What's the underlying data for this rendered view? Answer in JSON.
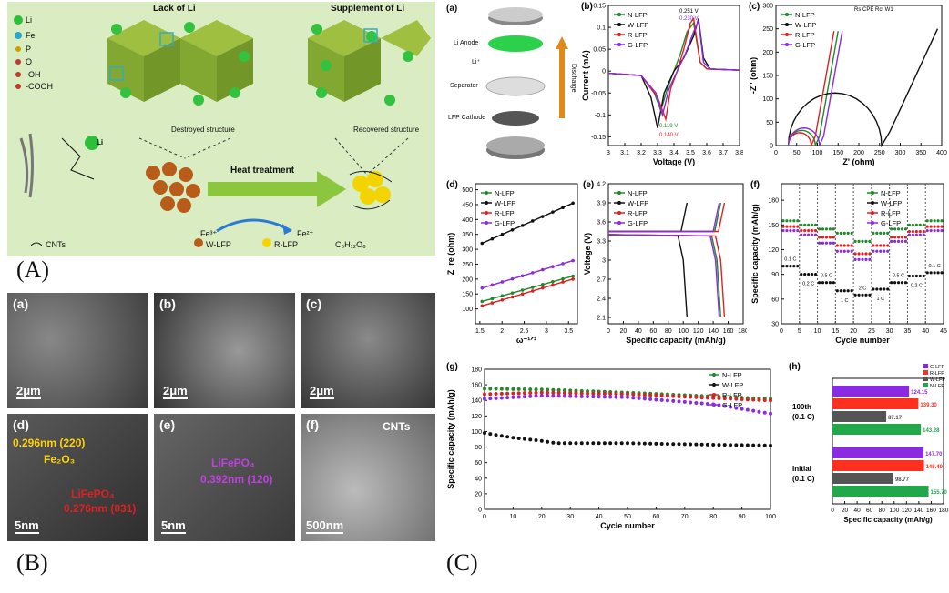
{
  "panelA": {
    "letter": "(A)",
    "legend": {
      "li": "Li",
      "fe": "Fe",
      "p": "P",
      "o": "O",
      "oh": "-OH",
      "cooh": "-COOH"
    },
    "lack_label": "Lack of Li",
    "supplement_label": "Supplement of Li",
    "destroyed_label": "Destroyed structure",
    "recovered_label": "Recovered structure",
    "li_bubble": "Li",
    "heat_label": "Heat treatment",
    "fe3": "Fe³⁺",
    "fe2": "Fe²⁺",
    "bottom_legend": {
      "cnts": "CNTs",
      "wlfp": "W-LFP",
      "rlfp": "R-LFP",
      "glucose": "C₆H₁₂O₆"
    },
    "colors": {
      "bg": "#d9ecc2",
      "li": "#2bbf3a",
      "fe": "#2aa7c8",
      "p": "#c9a100",
      "o": "#c0392b",
      "arrow": "#8cc63f",
      "wlfp": "#b85c1a",
      "rlfp": "#f4d400"
    }
  },
  "panelB": {
    "letter": "(B)",
    "images": [
      {
        "tag": "(a)",
        "scale": "2μm"
      },
      {
        "tag": "(b)",
        "scale": "2μm"
      },
      {
        "tag": "(c)",
        "scale": "2μm"
      },
      {
        "tag": "(d)",
        "scale": "5nm",
        "ann1": "0.296nm (220)",
        "ann2": "Fe₂O₃",
        "ann3": "LiFePO₄",
        "ann4": "0.276nm (031)"
      },
      {
        "tag": "(e)",
        "scale": "5nm",
        "ann1": "LiFePO₄",
        "ann2": "0.392nm (120)"
      },
      {
        "tag": "(f)",
        "scale": "500nm",
        "ann1": "CNTs"
      }
    ]
  },
  "panelC": {
    "letter": "(C)",
    "a": {
      "tag": "(a)",
      "labels": [
        "Li Anode",
        "Li⁺",
        "Separator",
        "LFP Cathode",
        "Discharge"
      ]
    },
    "series_names": [
      "N-LFP",
      "W-LFP",
      "R-LFP",
      "G-LFP"
    ],
    "series_colors": [
      "#1f8a2a",
      "#111111",
      "#e02020",
      "#8a2be2"
    ]
  },
  "chart_data": [
    {
      "id": "b",
      "type": "line",
      "tag": "(b)",
      "xlabel": "Voltage (V)",
      "ylabel": "Current (mA)",
      "xlim": [
        3.0,
        3.8
      ],
      "ylim": [
        -0.17,
        0.15
      ],
      "xticks": [
        3.0,
        3.1,
        3.2,
        3.3,
        3.4,
        3.5,
        3.6,
        3.7,
        3.8
      ],
      "yticks": [
        -0.15,
        -0.1,
        -0.05,
        0.0,
        0.05,
        0.1,
        0.15
      ],
      "annotations": [
        "0.251 V",
        "0.230 V",
        "0.119 V",
        "0.140 V"
      ],
      "series": [
        {
          "name": "N-LFP",
          "x": [
            3.0,
            3.2,
            3.28,
            3.32,
            3.36,
            3.4,
            3.44,
            3.48,
            3.52,
            3.56,
            3.6,
            3.8
          ],
          "y": [
            -0.005,
            -0.01,
            -0.05,
            -0.09,
            -0.04,
            0.0,
            0.04,
            0.09,
            0.11,
            0.02,
            0.005,
            0.002
          ]
        },
        {
          "name": "W-LFP",
          "x": [
            3.0,
            3.2,
            3.26,
            3.3,
            3.34,
            3.4,
            3.46,
            3.52,
            3.55,
            3.58,
            3.62,
            3.8
          ],
          "y": [
            -0.005,
            -0.01,
            -0.06,
            -0.13,
            -0.05,
            0.0,
            0.03,
            0.08,
            0.12,
            0.03,
            0.005,
            0.002
          ]
        },
        {
          "name": "R-LFP",
          "x": [
            3.0,
            3.2,
            3.3,
            3.35,
            3.38,
            3.42,
            3.46,
            3.5,
            3.52,
            3.56,
            3.6,
            3.8
          ],
          "y": [
            -0.005,
            -0.01,
            -0.06,
            -0.11,
            -0.04,
            0.0,
            0.05,
            0.11,
            0.12,
            0.02,
            0.005,
            0.002
          ]
        },
        {
          "name": "G-LFP",
          "x": [
            3.0,
            3.2,
            3.29,
            3.33,
            3.37,
            3.42,
            3.47,
            3.52,
            3.55,
            3.58,
            3.62,
            3.8
          ],
          "y": [
            -0.005,
            -0.01,
            -0.05,
            -0.1,
            -0.04,
            0.0,
            0.04,
            0.09,
            0.115,
            0.02,
            0.005,
            0.002
          ]
        }
      ]
    },
    {
      "id": "c",
      "type": "scatter",
      "tag": "(c)",
      "xlabel": "Z' (ohm)",
      "ylabel": "-Z'' (ohm)",
      "xlim": [
        0,
        400
      ],
      "ylim": [
        0,
        300
      ],
      "xticks": [
        0,
        50,
        100,
        150,
        200,
        250,
        300,
        350,
        400
      ],
      "yticks": [
        0,
        50,
        100,
        150,
        200,
        250,
        300
      ],
      "circuit": [
        "Rs",
        "CPE",
        "Rct",
        "W1"
      ]
    },
    {
      "id": "d",
      "type": "line",
      "tag": "(d)",
      "xlabel": "ω⁻¹ᐟ²",
      "ylabel": "Z_re (ohm)",
      "xlim": [
        1.4,
        3.7
      ],
      "ylim": [
        50,
        520
      ],
      "xticks": [
        1.5,
        2.0,
        2.5,
        3.0,
        3.5
      ],
      "yticks": [
        100,
        150,
        200,
        250,
        300,
        350,
        400,
        450,
        500
      ],
      "series": [
        {
          "name": "N-LFP",
          "x": [
            1.55,
            3.6
          ],
          "y": [
            125,
            210
          ]
        },
        {
          "name": "W-LFP",
          "x": [
            1.55,
            3.6
          ],
          "y": [
            320,
            455
          ]
        },
        {
          "name": "R-LFP",
          "x": [
            1.55,
            3.6
          ],
          "y": [
            110,
            200
          ]
        },
        {
          "name": "G-LFP",
          "x": [
            1.55,
            3.6
          ],
          "y": [
            170,
            262
          ]
        }
      ]
    },
    {
      "id": "e",
      "type": "line",
      "tag": "(e)",
      "xlabel": "Specific capacity (mAh/g)",
      "ylabel": "Voltage (V)",
      "xlim": [
        0,
        180
      ],
      "ylim": [
        2.0,
        4.2
      ],
      "xticks": [
        0,
        20,
        40,
        60,
        80,
        100,
        120,
        140,
        160,
        180
      ],
      "yticks": [
        2.1,
        2.4,
        2.7,
        3.0,
        3.3,
        3.6,
        3.9,
        4.2
      ]
    },
    {
      "id": "f",
      "type": "scatter",
      "tag": "(f)",
      "xlabel": "Cycle number",
      "ylabel": "Specific capacity (mAh/g)",
      "xlim": [
        0,
        45
      ],
      "ylim": [
        30,
        200
      ],
      "xticks": [
        0,
        5,
        10,
        15,
        20,
        25,
        30,
        35,
        40,
        45
      ],
      "yticks": [
        30,
        60,
        90,
        120,
        150,
        180
      ],
      "rates": [
        "0.1 C",
        "0.2 C",
        "0.5 C",
        "1 C",
        "2 C",
        "1 C",
        "0.5 C",
        "0.2 C",
        "0.1 C"
      ]
    },
    {
      "id": "g",
      "type": "scatter",
      "tag": "(g)",
      "xlabel": "Cycle number",
      "ylabel": "Specific capacity (mAh/g)",
      "xlim": [
        0,
        100
      ],
      "ylim": [
        0,
        180
      ],
      "xticks": [
        0,
        10,
        20,
        30,
        40,
        50,
        60,
        70,
        80,
        90,
        100
      ],
      "yticks": [
        0,
        20,
        40,
        60,
        80,
        100,
        120,
        140,
        160,
        180
      ],
      "series": [
        {
          "name": "N-LFP",
          "x": [
            0,
            20,
            50,
            80,
            100
          ],
          "y": [
            155,
            154,
            150,
            145,
            142
          ]
        },
        {
          "name": "W-LFP",
          "x": [
            0,
            10,
            20,
            25,
            50,
            80,
            100
          ],
          "y": [
            98,
            92,
            88,
            85,
            85,
            83,
            82
          ]
        },
        {
          "name": "R-LFP",
          "x": [
            0,
            20,
            50,
            80,
            100
          ],
          "y": [
            148,
            150,
            148,
            143,
            140
          ]
        },
        {
          "name": "G-LFP",
          "x": [
            0,
            20,
            50,
            80,
            100
          ],
          "y": [
            142,
            146,
            144,
            135,
            123
          ]
        }
      ]
    },
    {
      "id": "h",
      "type": "bar",
      "tag": "(h)",
      "xlabel": "Specific capacity (mAh/g)",
      "xlim": [
        0,
        180
      ],
      "xticks": [
        0,
        20,
        40,
        60,
        80,
        100,
        120,
        140,
        160,
        180
      ],
      "groups": [
        "100th\n(0.1 C)",
        "Initial\n(0.1 C)"
      ],
      "series": [
        {
          "name": "G-LFP",
          "values": [
            124.15,
            147.7
          ]
        },
        {
          "name": "R-LFP",
          "values": [
            139.3,
            148.4
          ]
        },
        {
          "name": "W-LFP",
          "values": [
            87.17,
            98.77
          ]
        },
        {
          "name": "N-LFP",
          "values": [
            143.28,
            155.7
          ]
        }
      ],
      "value_labels": [
        [
          "124.15",
          "139.30",
          "87.17",
          "143.28"
        ],
        [
          "147.70",
          "148.40",
          "98.77",
          "155.70"
        ]
      ],
      "colors": [
        "#8a2be2",
        "#ff3020",
        "#555555",
        "#22a84a"
      ]
    }
  ]
}
